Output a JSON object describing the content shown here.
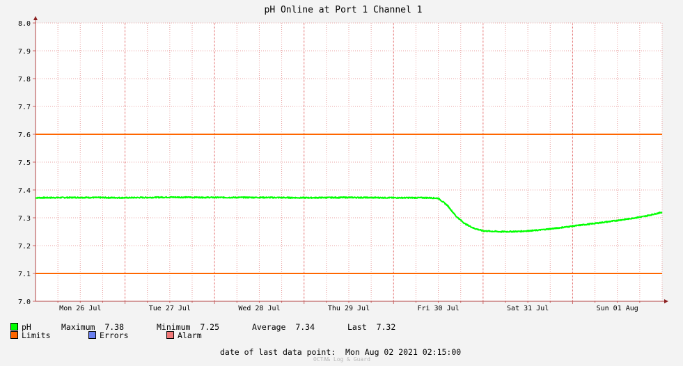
{
  "chart_data": {
    "type": "line",
    "title": "pH Online at Port 1 Channel 1",
    "ylim": [
      7.0,
      8.0
    ],
    "y_ticks": [
      "8.0",
      "7.9",
      "7.8",
      "7.7",
      "7.6",
      "7.5",
      "7.4",
      "7.3",
      "7.2",
      "7.1",
      "7.0"
    ],
    "x_range_days": [
      0,
      7
    ],
    "x_labels": [
      {
        "label": "Mon 26 Jul",
        "day": 0.5
      },
      {
        "label": "Tue 27 Jul",
        "day": 1.5
      },
      {
        "label": "Wed 28 Jul",
        "day": 2.5
      },
      {
        "label": "Thu 29 Jul",
        "day": 3.5
      },
      {
        "label": "Fri 30 Jul",
        "day": 4.5
      },
      {
        "label": "Sat 31 Jul",
        "day": 5.5
      },
      {
        "label": "Sun 01 Aug",
        "day": 6.5
      }
    ],
    "grid": true,
    "limits": [
      7.6,
      7.1
    ],
    "series": [
      {
        "name": "pH",
        "color": "#00ff00",
        "points": [
          [
            0,
            7.372
          ],
          [
            0.5,
            7.373
          ],
          [
            1.0,
            7.372
          ],
          [
            1.5,
            7.374
          ],
          [
            2.0,
            7.373
          ],
          [
            2.5,
            7.373
          ],
          [
            3.0,
            7.372
          ],
          [
            3.5,
            7.373
          ],
          [
            4.0,
            7.372
          ],
          [
            4.4,
            7.372
          ],
          [
            4.5,
            7.37
          ],
          [
            4.6,
            7.345
          ],
          [
            4.7,
            7.305
          ],
          [
            4.8,
            7.278
          ],
          [
            4.9,
            7.262
          ],
          [
            5.0,
            7.253
          ],
          [
            5.2,
            7.25
          ],
          [
            5.4,
            7.251
          ],
          [
            5.6,
            7.255
          ],
          [
            5.8,
            7.262
          ],
          [
            6.0,
            7.27
          ],
          [
            6.2,
            7.278
          ],
          [
            6.4,
            7.286
          ],
          [
            6.6,
            7.295
          ],
          [
            6.8,
            7.305
          ],
          [
            7.0,
            7.32
          ]
        ]
      }
    ],
    "limit_color": "#ff6600"
  },
  "legend": {
    "ph_label": "pH",
    "ph_color": "#00ff00",
    "max_label": "Maximum",
    "max_value": "7.38",
    "min_label": "Minimum",
    "min_value": "7.25",
    "avg_label": "Average",
    "avg_value": "7.34",
    "last_label": "Last",
    "last_value": "7.32",
    "limits_label": "Limits",
    "limits_color": "#ff6600",
    "errors_label": "Errors",
    "errors_color": "#6a7fef",
    "alarm_label": "Alarm",
    "alarm_color": "#f07878"
  },
  "footer": {
    "last_point_label": "date of last data point:",
    "last_point_value": "Mon Aug 02 2021 02:15:00",
    "watermark": "OCTA& Log & Guard"
  }
}
